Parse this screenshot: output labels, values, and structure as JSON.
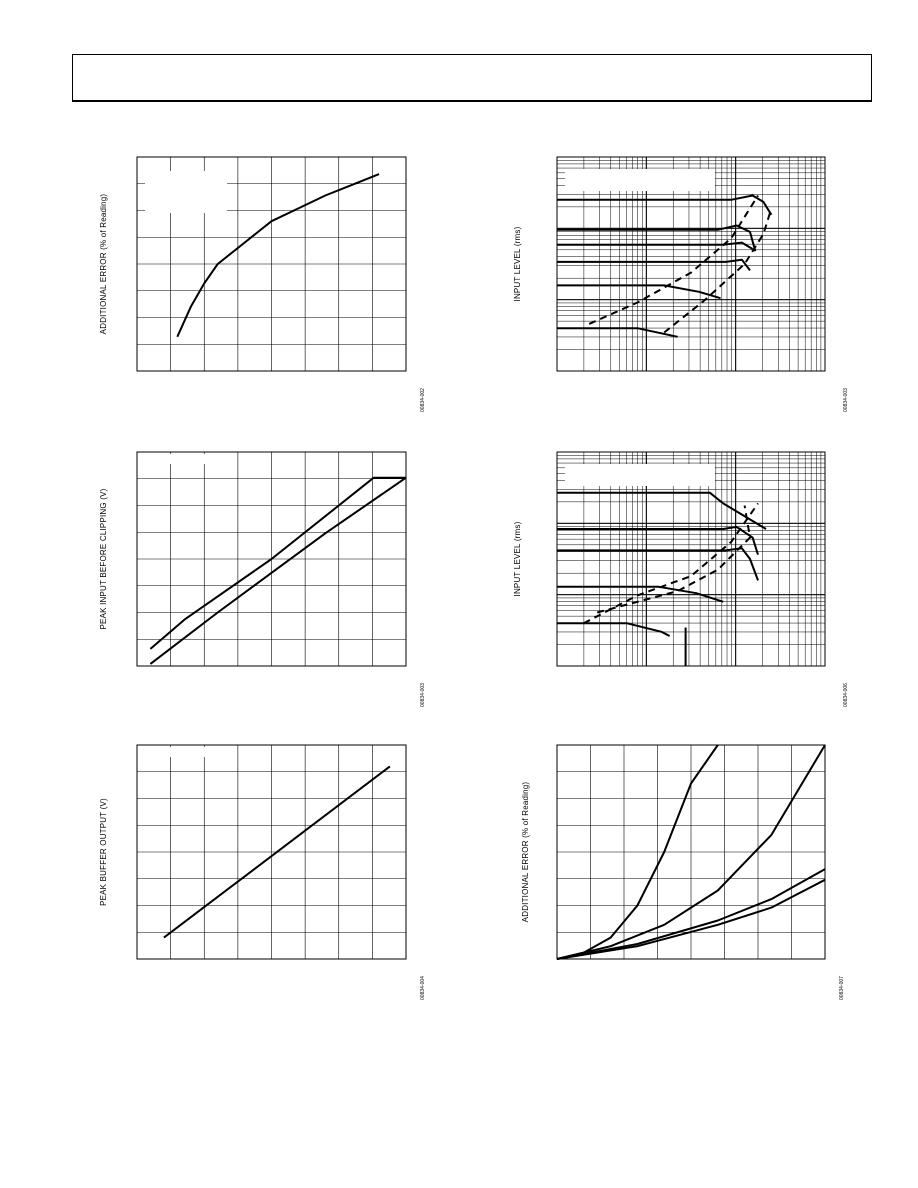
{
  "header": {
    "title": ""
  },
  "chart_data": [
    {
      "id": "chart1",
      "type": "line",
      "ylabel": "ADDITIONAL ERROR (% of Reading)",
      "figure_id": "00834-002",
      "grid": true,
      "series": [
        {
          "points": [
            [
              0.15,
              0.16
            ],
            [
              0.2,
              0.3
            ],
            [
              0.25,
              0.41
            ],
            [
              0.3,
              0.5
            ],
            [
              0.4,
              0.6
            ],
            [
              0.5,
              0.7
            ],
            [
              0.6,
              0.76
            ],
            [
              0.7,
              0.82
            ],
            [
              0.8,
              0.87
            ],
            [
              0.9,
              0.92
            ]
          ]
        }
      ]
    },
    {
      "id": "chart2",
      "type": "line",
      "ylabel": "INPUT LEVEL (rms)",
      "figure_id": "00834-003",
      "grid": true,
      "log_x": true,
      "log_y": true,
      "series": [
        {
          "style": "solid",
          "points": [
            [
              0,
              0.8
            ],
            [
              0.65,
              0.8
            ],
            [
              0.73,
              0.82
            ],
            [
              0.77,
              0.79
            ],
            [
              0.8,
              0.73
            ]
          ]
        },
        {
          "style": "solid",
          "points": [
            [
              0,
              0.66
            ],
            [
              0.6,
              0.66
            ],
            [
              0.67,
              0.68
            ],
            [
              0.72,
              0.65
            ],
            [
              0.74,
              0.56
            ]
          ]
        },
        {
          "style": "solid",
          "points": [
            [
              0,
              0.59
            ],
            [
              0.62,
              0.59
            ],
            [
              0.69,
              0.6
            ],
            [
              0.73,
              0.57
            ]
          ]
        },
        {
          "style": "solid",
          "points": [
            [
              0,
              0.51
            ],
            [
              0.63,
              0.51
            ],
            [
              0.69,
              0.52
            ],
            [
              0.72,
              0.47
            ]
          ]
        },
        {
          "style": "solid",
          "points": [
            [
              0,
              0.4
            ],
            [
              0.4,
              0.4
            ],
            [
              0.53,
              0.37
            ],
            [
              0.61,
              0.34
            ]
          ]
        },
        {
          "style": "solid",
          "points": [
            [
              0,
              0.2
            ],
            [
              0.3,
              0.2
            ],
            [
              0.45,
              0.16
            ]
          ]
        },
        {
          "style": "dashed",
          "points": [
            [
              0.12,
              0.22
            ],
            [
              0.3,
              0.32
            ],
            [
              0.5,
              0.46
            ],
            [
              0.65,
              0.62
            ],
            [
              0.75,
              0.82
            ]
          ]
        },
        {
          "style": "dashed",
          "points": [
            [
              0.4,
              0.18
            ],
            [
              0.55,
              0.33
            ],
            [
              0.7,
              0.5
            ],
            [
              0.77,
              0.64
            ],
            [
              0.8,
              0.76
            ]
          ]
        }
      ]
    },
    {
      "id": "chart3",
      "type": "line",
      "ylabel": "PEAK INPUT BEFORE CLIPPING (V)",
      "figure_id": "00834-003",
      "grid": true,
      "series": [
        {
          "points": [
            [
              0.05,
              0.08
            ],
            [
              0.18,
              0.22
            ],
            [
              0.5,
              0.5
            ],
            [
              0.88,
              0.88
            ],
            [
              1.2,
              0.88
            ]
          ]
        },
        {
          "points": [
            [
              0.05,
              0.01
            ],
            [
              0.3,
              0.25
            ],
            [
              0.7,
              0.62
            ],
            [
              1.0,
              0.88
            ],
            [
              1.2,
              0.88
            ]
          ]
        }
      ]
    },
    {
      "id": "chart4",
      "type": "line",
      "ylabel": "INPUT LEVEL (rms)",
      "figure_id": "00834-006",
      "grid": true,
      "log_x": true,
      "log_y": true,
      "series": [
        {
          "style": "solid",
          "points": [
            [
              0,
              0.81
            ],
            [
              0.57,
              0.81
            ],
            [
              0.62,
              0.76
            ],
            [
              0.78,
              0.64
            ]
          ]
        },
        {
          "style": "solid",
          "points": [
            [
              0,
              0.64
            ],
            [
              0.62,
              0.64
            ],
            [
              0.67,
              0.65
            ],
            [
              0.73,
              0.6
            ],
            [
              0.75,
              0.52
            ]
          ]
        },
        {
          "style": "solid",
          "points": [
            [
              0,
              0.54
            ],
            [
              0.63,
              0.54
            ],
            [
              0.69,
              0.55
            ],
            [
              0.72,
              0.5
            ],
            [
              0.75,
              0.4
            ]
          ]
        },
        {
          "style": "solid",
          "points": [
            [
              0,
              0.37
            ],
            [
              0.38,
              0.37
            ],
            [
              0.52,
              0.34
            ],
            [
              0.62,
              0.3
            ]
          ]
        },
        {
          "style": "solid",
          "points": [
            [
              0,
              0.2
            ],
            [
              0.26,
              0.2
            ],
            [
              0.39,
              0.16
            ],
            [
              0.42,
              0.14
            ]
          ]
        },
        {
          "style": "solid",
          "points": [
            [
              0.48,
              0
            ],
            [
              0.48,
              0.18
            ]
          ]
        },
        {
          "style": "dashed",
          "points": [
            [
              0.1,
              0.2
            ],
            [
              0.3,
              0.33
            ],
            [
              0.5,
              0.42
            ],
            [
              0.65,
              0.58
            ],
            [
              0.75,
              0.76
            ]
          ]
        },
        {
          "style": "dashed",
          "points": [
            [
              0.15,
              0.25
            ],
            [
              0.45,
              0.35
            ],
            [
              0.6,
              0.45
            ],
            [
              0.72,
              0.6
            ],
            [
              0.7,
              0.75
            ]
          ]
        }
      ]
    },
    {
      "id": "chart5",
      "type": "line",
      "ylabel": "PEAK BUFFER OUTPUT (V)",
      "figure_id": "00834-004",
      "grid": true,
      "series": [
        {
          "points": [
            [
              0.1,
              0.1
            ],
            [
              0.94,
              0.9
            ]
          ]
        }
      ]
    },
    {
      "id": "chart6",
      "type": "line",
      "ylabel": "ADDITIONAL ERROR (% of Reading)",
      "figure_id": "00834-007",
      "grid": true,
      "series": [
        {
          "points": [
            [
              0,
              0
            ],
            [
              0.1,
              0.03
            ],
            [
              0.2,
              0.1
            ],
            [
              0.3,
              0.25
            ],
            [
              0.4,
              0.5
            ],
            [
              0.5,
              0.82
            ],
            [
              0.6,
              1.3
            ]
          ]
        },
        {
          "points": [
            [
              0,
              0
            ],
            [
              0.2,
              0.06
            ],
            [
              0.4,
              0.16
            ],
            [
              0.6,
              0.32
            ],
            [
              0.8,
              0.58
            ],
            [
              1.0,
              1.0
            ]
          ]
        },
        {
          "points": [
            [
              0,
              0
            ],
            [
              0.3,
              0.07
            ],
            [
              0.6,
              0.18
            ],
            [
              0.8,
              0.28
            ],
            [
              1.0,
              0.42
            ]
          ]
        },
        {
          "points": [
            [
              0,
              0
            ],
            [
              0.3,
              0.06
            ],
            [
              0.6,
              0.16
            ],
            [
              0.8,
              0.24
            ],
            [
              1.0,
              0.37
            ]
          ]
        }
      ]
    }
  ]
}
